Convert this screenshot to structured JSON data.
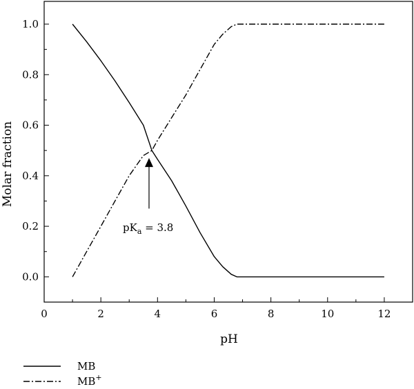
{
  "chart_data": {
    "type": "line",
    "xlabel": "pH",
    "ylabel": "Molar fraction",
    "xlim": [
      0,
      13
    ],
    "ylim": [
      -0.1,
      1.09
    ],
    "xticks": [
      0,
      2,
      4,
      6,
      8,
      10,
      12
    ],
    "yticks": [
      0.0,
      0.2,
      0.4,
      0.6,
      0.8,
      1.0
    ],
    "xtick_labels": [
      "0",
      "2",
      "4",
      "6",
      "8",
      "10",
      "12"
    ],
    "ytick_labels": [
      "0.0",
      "0.2",
      "0.4",
      "0.6",
      "0.8",
      "1.0"
    ],
    "grid": false,
    "legend_placement": "bottom-left, below plot",
    "series": [
      {
        "name": "MB",
        "style": "solid",
        "color": "#000000",
        "x": [
          1.0,
          1.5,
          2.0,
          2.5,
          3.0,
          3.5,
          3.8,
          4.0,
          4.5,
          5.0,
          5.5,
          6.0,
          6.3,
          6.6,
          6.8,
          7.0,
          8.0,
          9.0,
          10.0,
          11.0,
          12.0
        ],
        "y": [
          1.0,
          0.93,
          0.855,
          0.775,
          0.69,
          0.6,
          0.5,
          0.465,
          0.38,
          0.28,
          0.175,
          0.08,
          0.04,
          0.01,
          0.0,
          0.0,
          0.0,
          0.0,
          0.0,
          0.0,
          0.0
        ]
      },
      {
        "name_main": "MB",
        "name_sup": "+",
        "style": "dashdot",
        "color": "#000000",
        "x": [
          1.0,
          1.5,
          2.0,
          2.5,
          3.0,
          3.5,
          3.8,
          4.0,
          4.5,
          5.0,
          5.5,
          6.0,
          6.3,
          6.6,
          6.8,
          7.0,
          8.0,
          9.0,
          10.0,
          11.0,
          12.0
        ],
        "y": [
          0.0,
          0.1,
          0.2,
          0.3,
          0.4,
          0.48,
          0.5,
          0.54,
          0.63,
          0.72,
          0.82,
          0.92,
          0.96,
          0.99,
          1.0,
          1.0,
          1.0,
          1.0,
          1.0,
          1.0,
          1.0
        ]
      }
    ],
    "annotation": {
      "text_main": "pK",
      "text_sub": "a",
      "text_rest": " = 3.8",
      "arrow_from": [
        3.7,
        0.27
      ],
      "arrow_to": [
        3.7,
        0.47
      ]
    }
  }
}
